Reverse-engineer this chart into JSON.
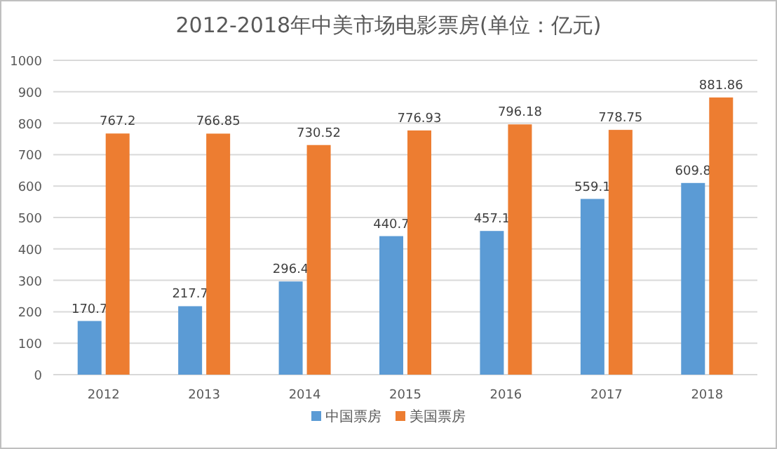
{
  "chart_data": {
    "type": "bar",
    "title": "2012-2018年中美市场电影票房(单位：亿元)",
    "categories": [
      "2012",
      "2013",
      "2014",
      "2015",
      "2016",
      "2017",
      "2018"
    ],
    "series": [
      {
        "name": "中国票房",
        "color": "#5b9bd5",
        "values": [
          170.7,
          217.7,
          296.4,
          440.7,
          457.1,
          559.1,
          609.8
        ]
      },
      {
        "name": "美国票房",
        "color": "#ed7d31",
        "values": [
          767.2,
          766.85,
          730.52,
          776.93,
          796.18,
          778.75,
          881.86
        ]
      }
    ],
    "ylim": [
      0,
      1000
    ],
    "yticks": [
      0,
      100,
      200,
      300,
      400,
      500,
      600,
      700,
      800,
      900,
      1000
    ],
    "grid": "y",
    "legend": "bottom",
    "data_labels": true
  }
}
